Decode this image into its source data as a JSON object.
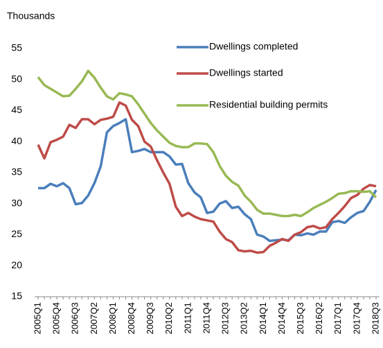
{
  "chart_data": {
    "type": "line",
    "y_label": "Thousands",
    "categories": [
      "2005Q1",
      null,
      null,
      "2005Q4",
      null,
      null,
      "2006Q3",
      null,
      null,
      "2007Q2",
      null,
      null,
      "2008Q1",
      null,
      null,
      "2008Q4",
      null,
      null,
      "2009Q3",
      null,
      null,
      "2010Q2",
      null,
      null,
      "2011Q1",
      null,
      null,
      "2011Q4",
      null,
      null,
      "2012Q3",
      null,
      null,
      "2013Q2",
      null,
      null,
      "2014Q1",
      null,
      null,
      "2014Q4",
      null,
      null,
      "2015Q3",
      null,
      null,
      "2016Q2",
      null,
      null,
      "2017Q1",
      null,
      null,
      "2017Q4",
      null,
      null,
      "2018Q3"
    ],
    "series": [
      {
        "name": "Dwellings completed",
        "color": "#4a7ebb",
        "values": [
          32.5,
          32.5,
          33.2,
          32.8,
          33.3,
          32.5,
          29.9,
          30.1,
          31.3,
          33.3,
          36,
          41.5,
          42.5,
          43,
          43.6,
          38.3,
          38.5,
          38.8,
          38.3,
          38.3,
          38.3,
          37.6,
          36.3,
          36.4,
          33.3,
          31.8,
          31,
          28.5,
          28.7,
          30,
          30.4,
          29.3,
          29.5,
          28.3,
          27.5,
          25,
          24.7,
          24,
          24.1,
          24.2,
          24.1,
          25,
          24.9,
          25.2,
          25,
          25.5,
          25.5,
          27,
          27.2,
          26.9,
          27.8,
          28.5,
          28.8,
          30.3,
          32.2
        ]
      },
      {
        "name": "Dwellings started",
        "color": "#be4b48",
        "values": [
          39.5,
          37.3,
          39.9,
          40.3,
          40.8,
          42.7,
          42.2,
          43.6,
          43.6,
          42.8,
          43.5,
          43.7,
          44,
          46.3,
          45.8,
          43.5,
          42.5,
          40,
          39.2,
          37,
          35,
          33.2,
          29.5,
          28,
          28.5,
          27.9,
          27.5,
          27.3,
          27.1,
          25.5,
          24.3,
          23.8,
          22.5,
          22.3,
          22.4,
          22.1,
          22.2,
          23.2,
          23.7,
          24.3,
          24,
          25,
          25.4,
          26.2,
          26.4,
          26,
          26.2,
          27.5,
          28.5,
          29.6,
          30.9,
          31.4,
          32.4,
          33,
          32.8
        ]
      },
      {
        "name": "Residential building permits",
        "color": "#98b954",
        "values": [
          50.4,
          49.1,
          48.5,
          47.9,
          47.3,
          47.4,
          48.5,
          49.7,
          51.4,
          50.3,
          48.7,
          47.3,
          46.8,
          47.8,
          47.6,
          47.3,
          46,
          44.5,
          43,
          41.8,
          40.8,
          39.8,
          39.3,
          39.1,
          39.1,
          39.7,
          39.7,
          39.6,
          38.3,
          36.1,
          34.5,
          33.5,
          32.9,
          31.3,
          30.3,
          29,
          28.4,
          28.4,
          28.2,
          28,
          28,
          28.2,
          28,
          28.6,
          29.3,
          29.8,
          30.3,
          30.9,
          31.6,
          31.7,
          32,
          32,
          31.9,
          32,
          31
        ]
      }
    ],
    "ylim": [
      15,
      55
    ],
    "yticks": [
      15,
      20,
      25,
      30,
      35,
      40,
      45,
      50,
      55
    ],
    "grid": false,
    "legend": "upper right"
  }
}
